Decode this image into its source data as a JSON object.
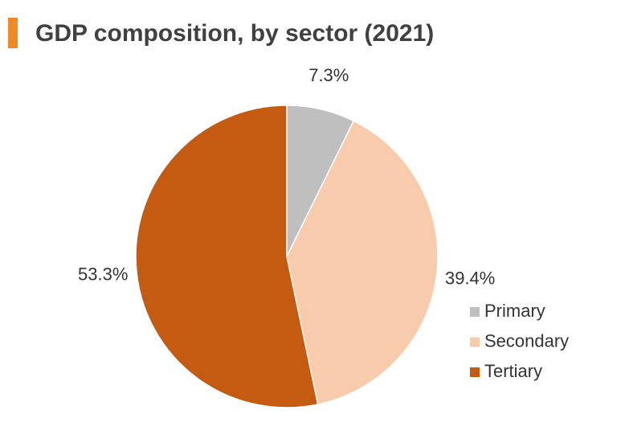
{
  "chart_data": {
    "type": "pie",
    "title": "GDP composition, by sector (2021)",
    "categories": [
      "Primary",
      "Secondary",
      "Tertiary"
    ],
    "values": [
      7.3,
      39.4,
      53.3
    ],
    "value_labels": [
      "7.3%",
      "39.4%",
      "53.3%"
    ],
    "colors": [
      "#bfbfbf",
      "#f8cbad",
      "#c55a11"
    ],
    "legend": "right"
  }
}
